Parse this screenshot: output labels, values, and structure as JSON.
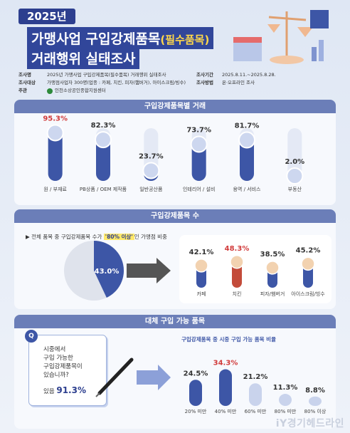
{
  "header": {
    "year": "2025년",
    "title_line1": "가맹사업 구입강제품목",
    "title_line1_sub": "(필수품목)",
    "title_line2": "거래행위 실태조사"
  },
  "info": {
    "name_k": "조사명",
    "name_v": "2025년 가맹사업 구입강제품목(필수품목) 거래행위 실태조사",
    "period_k": "조사기간",
    "period_v": "2025.8.11.~2025.8.28.",
    "target_k": "조사대상",
    "target_v": "가맹점사업자 300명(업종 : 카페, 치킨, 피자(햄버거), 아이스크림/빙수)",
    "method_k": "조사방법",
    "method_v": "온·오프라인 조사",
    "org_k": "주관",
    "org_v": "인천소상공인종합지원센터"
  },
  "sections": {
    "s1": "구입강제품목별 거래",
    "s2": "구입강제품목 수",
    "s3": "대체 구입 가능 품목"
  },
  "s2": {
    "note_pre": "전체 품목 중 구입강제품목 수가",
    "note_hl": "'80% 이상'",
    "note_post": "인 가맹점 비중",
    "pie_value_label": "43.0%"
  },
  "s3": {
    "q_icon": "Q",
    "q_line1": "시중에서",
    "q_line2": "구입 가능한",
    "q_line3": "구입강제품목이",
    "q_line4": "있습니까?",
    "q_yes_pre": "있음",
    "q_yes_val": "91.3%",
    "chart_title": "구입강제품목 중 시중 구입 가능 품목 비율"
  },
  "footer": "iY경기헤드라인",
  "colors": {
    "navy": "#2d3f8f",
    "bar": "#3d56a6",
    "bar_light": "#c9d3ec",
    "red": "#d13a3a"
  },
  "chart_data": [
    {
      "type": "bar",
      "title": "구입강제품목별 거래",
      "categories": [
        "원 / 부재료",
        "PB상품 / OEM 제작품",
        "일반공산품",
        "인테리어 / 설비",
        "용역 / 서비스",
        "부동산"
      ],
      "values": [
        95.3,
        82.3,
        23.7,
        73.7,
        81.7,
        2.0
      ],
      "value_labels": [
        "95.3%",
        "82.3%",
        "23.7%",
        "73.7%",
        "81.7%",
        "2.0%"
      ],
      "ylim": [
        0,
        100
      ]
    },
    {
      "type": "pie",
      "title": "구입강제품목 수",
      "values": [
        43.0,
        57.0
      ],
      "value_labels": [
        "43.0%"
      ]
    },
    {
      "type": "bar",
      "categories": [
        "카페",
        "치킨",
        "피자/햄버거",
        "아이스크림/빙수"
      ],
      "values": [
        42.1,
        48.3,
        38.5,
        45.2
      ],
      "value_labels": [
        "42.1%",
        "48.3%",
        "38.5%",
        "45.2%"
      ],
      "ylim": [
        0,
        60
      ]
    },
    {
      "type": "bar",
      "title": "구입강제품목 중 시중 구입 가능 품목 비율",
      "categories": [
        "20% 미만",
        "40% 미만",
        "60% 미만",
        "80% 미만",
        "80% 이상"
      ],
      "values": [
        24.5,
        34.3,
        21.2,
        11.3,
        8.8
      ],
      "value_labels": [
        "24.5%",
        "34.3%",
        "21.2%",
        "11.3%",
        "8.8%"
      ],
      "ylim": [
        0,
        40
      ]
    }
  ]
}
